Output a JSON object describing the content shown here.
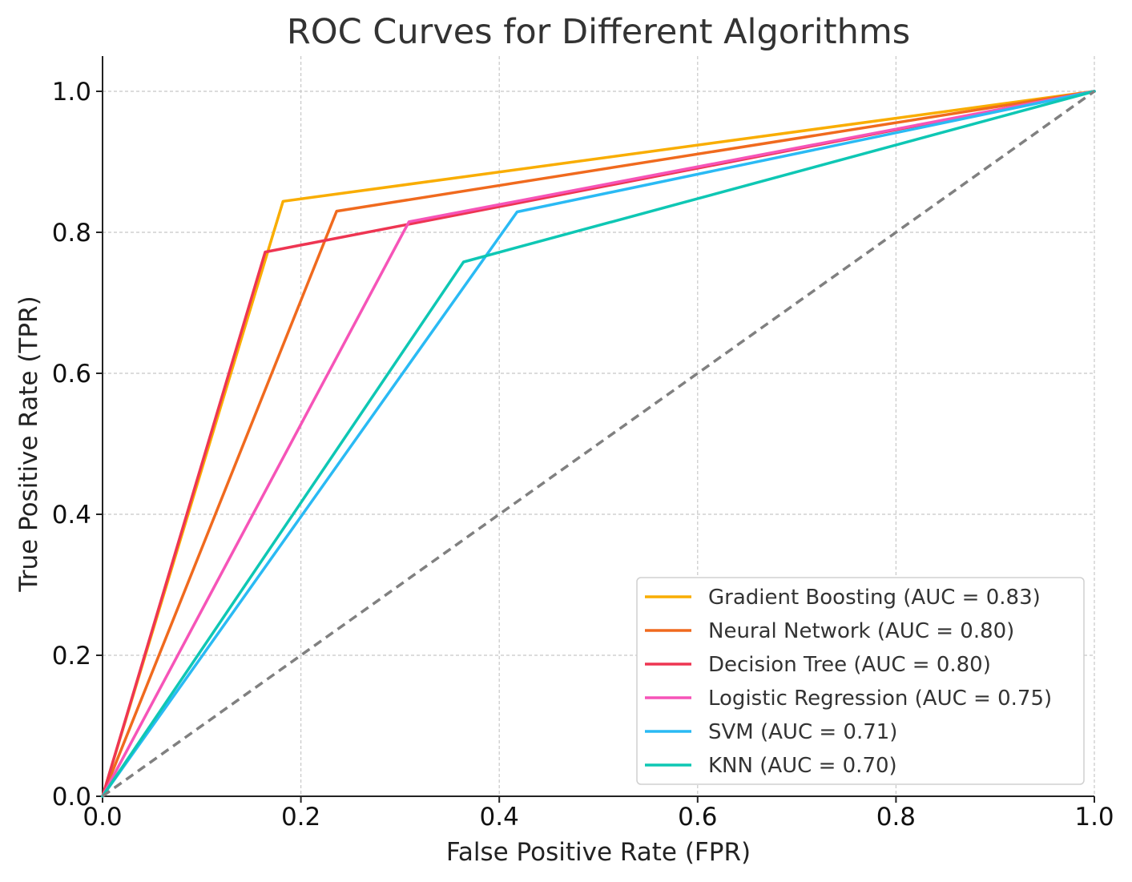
{
  "chart_data": {
    "type": "line",
    "title": "ROC Curves for Different Algorithms",
    "xlabel": "False Positive Rate (FPR)",
    "ylabel": "True Positive Rate (TPR)",
    "xlim": [
      0,
      1
    ],
    "ylim": [
      0,
      1.05
    ],
    "xticks": [
      "0.0",
      "0.2",
      "0.4",
      "0.6",
      "0.8",
      "1.0"
    ],
    "yticks": [
      "0.0",
      "0.2",
      "0.4",
      "0.6",
      "0.8",
      "1.0"
    ],
    "grid": true,
    "legend_position": "bottom-right",
    "series": [
      {
        "name": "Gradient Boosting (AUC = 0.83)",
        "color": "#f9ad00",
        "x": [
          0,
          0.182,
          1
        ],
        "y": [
          0,
          0.844,
          1
        ]
      },
      {
        "name": "Neural Network (AUC = 0.80)",
        "color": "#f06a1e",
        "x": [
          0,
          0.236,
          1
        ],
        "y": [
          0,
          0.83,
          1
        ]
      },
      {
        "name": "Decision Tree (AUC = 0.80)",
        "color": "#ee3552",
        "x": [
          0,
          0.164,
          1
        ],
        "y": [
          0,
          0.772,
          1
        ]
      },
      {
        "name": "Logistic Regression (AUC = 0.75)",
        "color": "#f654b8",
        "x": [
          0,
          0.309,
          1
        ],
        "y": [
          0,
          0.815,
          1
        ]
      },
      {
        "name": "SVM (AUC = 0.71)",
        "color": "#2abaf4",
        "x": [
          0,
          0.418,
          1
        ],
        "y": [
          0,
          0.829,
          1
        ]
      },
      {
        "name": "KNN (AUC = 0.70)",
        "color": "#0ec7b4",
        "x": [
          0,
          0.364,
          1
        ],
        "y": [
          0,
          0.758,
          1
        ]
      }
    ],
    "reference_line": {
      "color": "#808080",
      "x": [
        0,
        1
      ],
      "y": [
        0,
        1
      ]
    }
  }
}
